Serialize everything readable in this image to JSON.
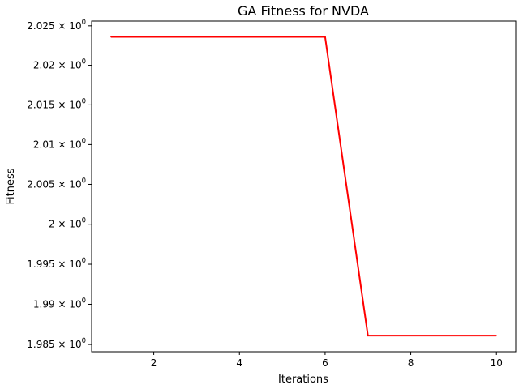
{
  "chart_data": {
    "type": "line",
    "title": "GA Fitness for NVDA",
    "xlabel": "Iterations",
    "ylabel": "Fitness",
    "y_scale": "log",
    "xlim": [
      0.55,
      10.45
    ],
    "ylim": [
      1.9841,
      2.0256
    ],
    "grid": false,
    "x_ticks": [
      {
        "value": 2,
        "label": "2"
      },
      {
        "value": 4,
        "label": "4"
      },
      {
        "value": 6,
        "label": "6"
      },
      {
        "value": 8,
        "label": "8"
      },
      {
        "value": 10,
        "label": "10"
      }
    ],
    "y_ticks": [
      {
        "value": 2.025,
        "mantissa": "2.025",
        "base": "10",
        "exp": "0"
      },
      {
        "value": 2.02,
        "mantissa": "2.02",
        "base": "10",
        "exp": "0"
      },
      {
        "value": 2.015,
        "mantissa": "2.015",
        "base": "10",
        "exp": "0"
      },
      {
        "value": 2.01,
        "mantissa": "2.01",
        "base": "10",
        "exp": "0"
      },
      {
        "value": 2.005,
        "mantissa": "2.005",
        "base": "10",
        "exp": "0"
      },
      {
        "value": 2.0,
        "mantissa": "2",
        "base": "10",
        "exp": "0"
      },
      {
        "value": 1.995,
        "mantissa": "1.995",
        "base": "10",
        "exp": "0"
      },
      {
        "value": 1.99,
        "mantissa": "1.99",
        "base": "10",
        "exp": "0"
      },
      {
        "value": 1.985,
        "mantissa": "1.985",
        "base": "10",
        "exp": "0"
      }
    ],
    "series": [
      {
        "color": "#ff0000",
        "x": [
          1,
          2,
          3,
          4,
          5,
          6,
          7,
          8,
          9,
          10
        ],
        "y": [
          2.0236,
          2.0236,
          2.0236,
          2.0236,
          2.0236,
          2.0236,
          1.9861,
          1.9861,
          1.9861,
          1.9861
        ]
      }
    ]
  }
}
